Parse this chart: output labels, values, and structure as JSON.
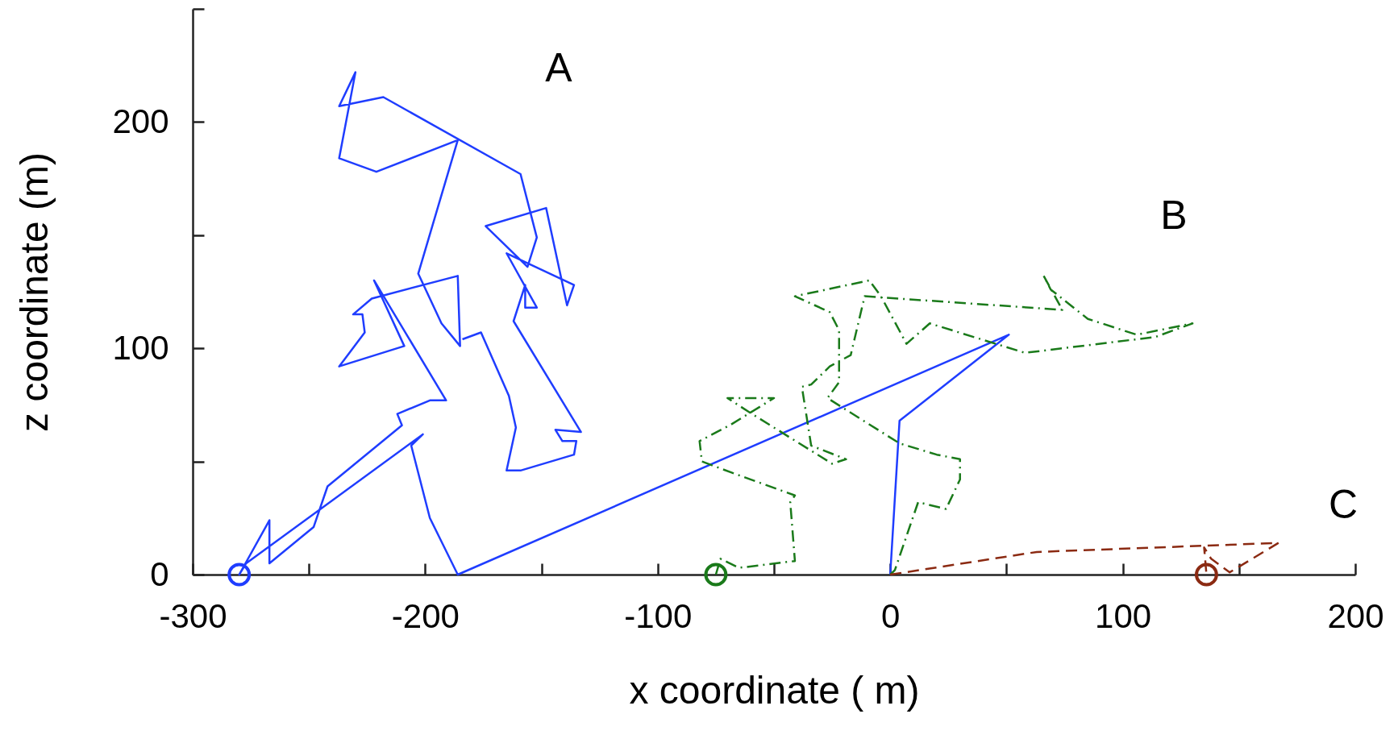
{
  "chart_data": {
    "type": "line",
    "xlabel": "x coordinate ( m)",
    "ylabel": "z coordinate  (m)",
    "xlim": [
      -300,
      200
    ],
    "ylim": [
      0,
      250
    ],
    "xticks": [
      -300,
      {
        "value": -250,
        "label": null
      },
      -200,
      {
        "value": -150,
        "label": null
      },
      -100,
      {
        "value": -50,
        "label": null
      },
      0,
      {
        "value": 50,
        "label": null
      },
      100,
      {
        "value": 150,
        "label": null
      },
      200
    ],
    "yticks": [
      0,
      {
        "value": 50,
        "label": null
      },
      100,
      {
        "value": 150,
        "label": null
      },
      200,
      {
        "value": 250,
        "label": null
      }
    ],
    "series": [
      {
        "type": "line",
        "name": "A",
        "color": "#1f3dff",
        "line_style": "solid",
        "x": [
          -184,
          -176,
          -164,
          -161,
          -165,
          -159,
          -136,
          -135,
          -141,
          -144,
          -133,
          -162,
          -157,
          -157,
          -152,
          -165,
          -136,
          -139,
          -148,
          -174,
          -156,
          -152,
          -159,
          -218,
          -237,
          -230,
          -237,
          -221,
          -186,
          -203,
          -193,
          -185,
          -186,
          -223,
          -231,
          -227,
          -226,
          -237,
          -209,
          -222,
          -191,
          -198,
          -212,
          -210,
          -242,
          -248,
          -267,
          -267,
          -280,
          -277,
          -201,
          -206,
          -198,
          -186,
          51,
          4,
          0
        ],
        "values": [
          104,
          107,
          79,
          65,
          46,
          46,
          53,
          59,
          59,
          64,
          63,
          112,
          128,
          118,
          118,
          142,
          128,
          119,
          162,
          154,
          136,
          149,
          177,
          211,
          207,
          222,
          184,
          178,
          192,
          133,
          111,
          101,
          132,
          122,
          115,
          115,
          107,
          92,
          101,
          130,
          77,
          77,
          71,
          66,
          39,
          21,
          5,
          24,
          0,
          5,
          62,
          57,
          25,
          0,
          106,
          68,
          0
        ]
      },
      {
        "type": "line",
        "name": "B",
        "color": "#1a7a1a",
        "line_style": "dashdot",
        "x": [
          -75,
          -73,
          -65,
          -41,
          -43,
          -41,
          -68,
          -81,
          -82,
          -69,
          -50,
          -70,
          -61,
          -25,
          -19,
          -34,
          -38,
          -34,
          -26,
          -17,
          -11,
          74,
          66,
          69,
          85,
          106,
          130,
          114,
          58,
          17,
          7,
          -4,
          -9,
          -41,
          -26,
          -22,
          -22,
          -27,
          4,
          20,
          30,
          30,
          24,
          12,
          2,
          0
        ],
        "values": [
          0,
          7,
          3,
          6,
          32,
          35,
          45,
          50,
          59,
          66,
          78,
          78,
          72,
          49,
          51,
          57,
          83,
          84,
          92,
          97,
          123,
          117,
          132,
          126,
          113,
          106,
          111,
          105,
          98,
          111,
          102,
          123,
          130,
          123,
          116,
          108,
          85,
          78,
          58,
          53,
          51,
          42,
          29,
          32,
          2,
          0
        ]
      },
      {
        "type": "line",
        "name": "C",
        "color": "#8b2a12",
        "line_style": "dashed",
        "x": [
          0,
          63,
          167,
          146,
          138,
          135,
          136
        ],
        "values": [
          0,
          10,
          14,
          1,
          7,
          12,
          0
        ]
      },
      {
        "type": "scatter",
        "color": "#1f3dff",
        "marker": "circle",
        "x": [
          -280
        ],
        "values": [
          0
        ]
      },
      {
        "type": "scatter",
        "color": "#1a7a1a",
        "marker": "circle",
        "x": [
          -75
        ],
        "values": [
          0
        ]
      },
      {
        "type": "scatter",
        "color": "#8b2a12",
        "marker": "circle",
        "x": [
          136
        ],
        "values": [
          0
        ]
      }
    ]
  }
}
